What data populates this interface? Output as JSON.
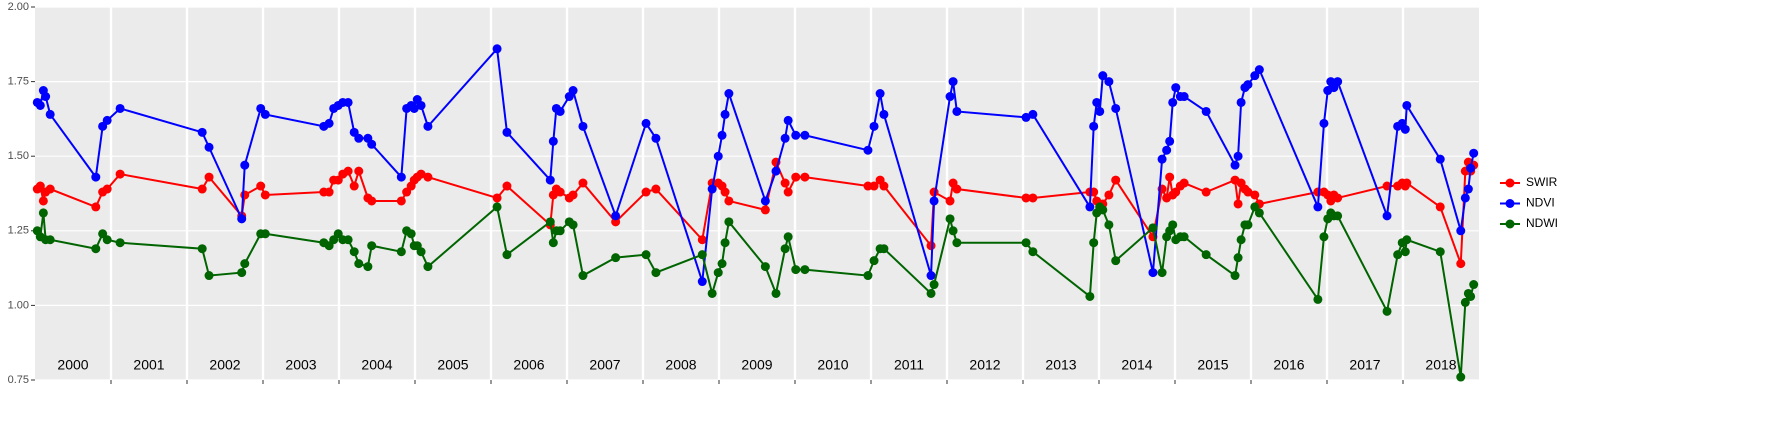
{
  "chart_data": {
    "type": "line",
    "x": [
      2000.03,
      2000.07,
      2000.11,
      2000.14,
      2000.2,
      2000.8,
      2000.89,
      2000.95,
      2001.12,
      2002.2,
      2002.29,
      2002.72,
      2002.76,
      2002.97,
      2003.03,
      2003.8,
      2003.87,
      2003.93,
      2003.99,
      2004.05,
      2004.12,
      2004.2,
      2004.26,
      2004.38,
      2004.43,
      2004.82,
      2004.89,
      2004.95,
      2004.99,
      2005.03,
      2005.08,
      2005.17,
      2006.08,
      2006.21,
      2006.78,
      2006.82,
      2006.86,
      2006.91,
      2007.03,
      2007.08,
      2007.21,
      2007.64,
      2008.04,
      2008.17,
      2008.78,
      2008.91,
      2008.99,
      2009.04,
      2009.08,
      2009.13,
      2009.61,
      2009.75,
      2009.87,
      2009.91,
      2010.01,
      2010.13,
      2010.96,
      2011.04,
      2011.12,
      2011.17,
      2011.79,
      2011.83,
      2012.04,
      2012.08,
      2012.13,
      2013.04,
      2013.13,
      2013.88,
      2013.93,
      2013.97,
      2014.01,
      2014.05,
      2014.13,
      2014.22,
      2014.71,
      2014.83,
      2014.89,
      2014.93,
      2014.97,
      2015.01,
      2015.07,
      2015.12,
      2015.41,
      2015.79,
      2015.83,
      2015.87,
      2015.92,
      2015.96,
      2016.05,
      2016.11,
      2016.88,
      2016.96,
      2017.01,
      2017.05,
      2017.09,
      2017.14,
      2017.79,
      2017.93,
      2017.99,
      2018.03,
      2018.05,
      2018.49,
      2018.76,
      2018.82,
      2018.86,
      2018.89,
      2018.93
    ],
    "series": [
      {
        "name": "SWIR",
        "color": "#ff0000",
        "values": [
          1.39,
          1.4,
          1.35,
          1.38,
          1.39,
          1.33,
          1.38,
          1.39,
          1.44,
          1.39,
          1.43,
          1.3,
          1.37,
          1.4,
          1.37,
          1.38,
          1.38,
          1.42,
          1.42,
          1.44,
          1.45,
          1.4,
          1.45,
          1.36,
          1.35,
          1.35,
          1.38,
          1.4,
          1.42,
          1.43,
          1.44,
          1.43,
          1.36,
          1.4,
          1.27,
          1.37,
          1.39,
          1.38,
          1.36,
          1.37,
          1.41,
          1.28,
          1.38,
          1.39,
          1.22,
          1.41,
          1.41,
          1.4,
          1.38,
          1.35,
          1.32,
          1.48,
          1.41,
          1.38,
          1.43,
          1.43,
          1.4,
          1.4,
          1.42,
          1.4,
          1.2,
          1.38,
          1.35,
          1.41,
          1.39,
          1.36,
          1.36,
          1.38,
          1.38,
          1.35,
          1.33,
          1.34,
          1.37,
          1.42,
          1.23,
          1.39,
          1.36,
          1.43,
          1.37,
          1.38,
          1.4,
          1.41,
          1.38,
          1.42,
          1.34,
          1.41,
          1.39,
          1.38,
          1.37,
          1.34,
          1.38,
          1.38,
          1.37,
          1.35,
          1.37,
          1.36,
          1.4,
          1.4,
          1.41,
          1.4,
          1.41,
          1.33,
          1.14,
          1.45,
          1.48,
          1.45,
          1.47
        ]
      },
      {
        "name": "NDVI",
        "color": "#0000ff",
        "values": [
          1.68,
          1.67,
          1.72,
          1.7,
          1.64,
          1.43,
          1.6,
          1.62,
          1.66,
          1.58,
          1.53,
          1.29,
          1.47,
          1.66,
          1.64,
          1.6,
          1.61,
          1.66,
          1.67,
          1.68,
          1.68,
          1.58,
          1.56,
          1.56,
          1.54,
          1.43,
          1.66,
          1.67,
          1.66,
          1.69,
          1.67,
          1.6,
          1.86,
          1.58,
          1.42,
          1.55,
          1.66,
          1.65,
          1.7,
          1.72,
          1.6,
          1.3,
          1.61,
          1.56,
          1.08,
          1.39,
          1.5,
          1.57,
          1.64,
          1.71,
          1.35,
          1.45,
          1.56,
          1.62,
          1.57,
          1.57,
          1.52,
          1.6,
          1.71,
          1.64,
          1.1,
          1.35,
          1.7,
          1.75,
          1.65,
          1.63,
          1.64,
          1.33,
          1.6,
          1.68,
          1.65,
          1.77,
          1.75,
          1.66,
          1.11,
          1.49,
          1.52,
          1.55,
          1.68,
          1.73,
          1.7,
          1.7,
          1.65,
          1.47,
          1.5,
          1.68,
          1.73,
          1.74,
          1.77,
          1.79,
          1.33,
          1.61,
          1.72,
          1.75,
          1.73,
          1.75,
          1.3,
          1.6,
          1.61,
          1.59,
          1.67,
          1.49,
          1.25,
          1.36,
          1.39,
          1.46,
          1.51
        ]
      },
      {
        "name": "NDWI",
        "color": "#006400",
        "values": [
          1.25,
          1.23,
          1.31,
          1.22,
          1.22,
          1.19,
          1.24,
          1.22,
          1.21,
          1.19,
          1.1,
          1.11,
          1.14,
          1.24,
          1.24,
          1.21,
          1.2,
          1.22,
          1.24,
          1.22,
          1.22,
          1.18,
          1.14,
          1.13,
          1.2,
          1.18,
          1.25,
          1.24,
          1.2,
          1.2,
          1.18,
          1.13,
          1.33,
          1.17,
          1.28,
          1.21,
          1.25,
          1.25,
          1.28,
          1.27,
          1.1,
          1.16,
          1.17,
          1.11,
          1.17,
          1.04,
          1.11,
          1.14,
          1.21,
          1.28,
          1.13,
          1.04,
          1.19,
          1.23,
          1.12,
          1.12,
          1.1,
          1.15,
          1.19,
          1.19,
          1.04,
          1.07,
          1.29,
          1.25,
          1.21,
          1.21,
          1.18,
          1.03,
          1.21,
          1.31,
          1.33,
          1.32,
          1.27,
          1.15,
          1.26,
          1.11,
          1.23,
          1.25,
          1.27,
          1.22,
          1.23,
          1.23,
          1.17,
          1.1,
          1.16,
          1.22,
          1.27,
          1.27,
          1.33,
          1.31,
          1.02,
          1.23,
          1.29,
          1.31,
          1.3,
          1.3,
          0.98,
          1.17,
          1.21,
          1.18,
          1.22,
          1.18,
          0.76,
          1.01,
          1.04,
          1.03,
          1.07
        ]
      }
    ],
    "xlim": [
      2000,
      2019
    ],
    "xticks": [
      2001,
      2002,
      2003,
      2004,
      2005,
      2006,
      2007,
      2008,
      2009,
      2010,
      2011,
      2012,
      2013,
      2014,
      2015,
      2016,
      2017,
      2018
    ],
    "year_labels": [
      2000,
      2001,
      2002,
      2003,
      2004,
      2005,
      2006,
      2007,
      2008,
      2009,
      2010,
      2011,
      2012,
      2013,
      2014,
      2015,
      2016,
      2017,
      2018
    ],
    "ylim": [
      0.75,
      2.0
    ],
    "yticks": [
      {
        "value": 0.75,
        "label": "0.75"
      },
      {
        "value": 1.0,
        "label": "1.00"
      },
      {
        "value": 1.25,
        "label": "1.25"
      },
      {
        "value": 1.5,
        "label": "1.50"
      },
      {
        "value": 1.75,
        "label": "1.75"
      },
      {
        "value": 2.0,
        "label": "2.00"
      }
    ],
    "grid": true,
    "legend": "right"
  }
}
